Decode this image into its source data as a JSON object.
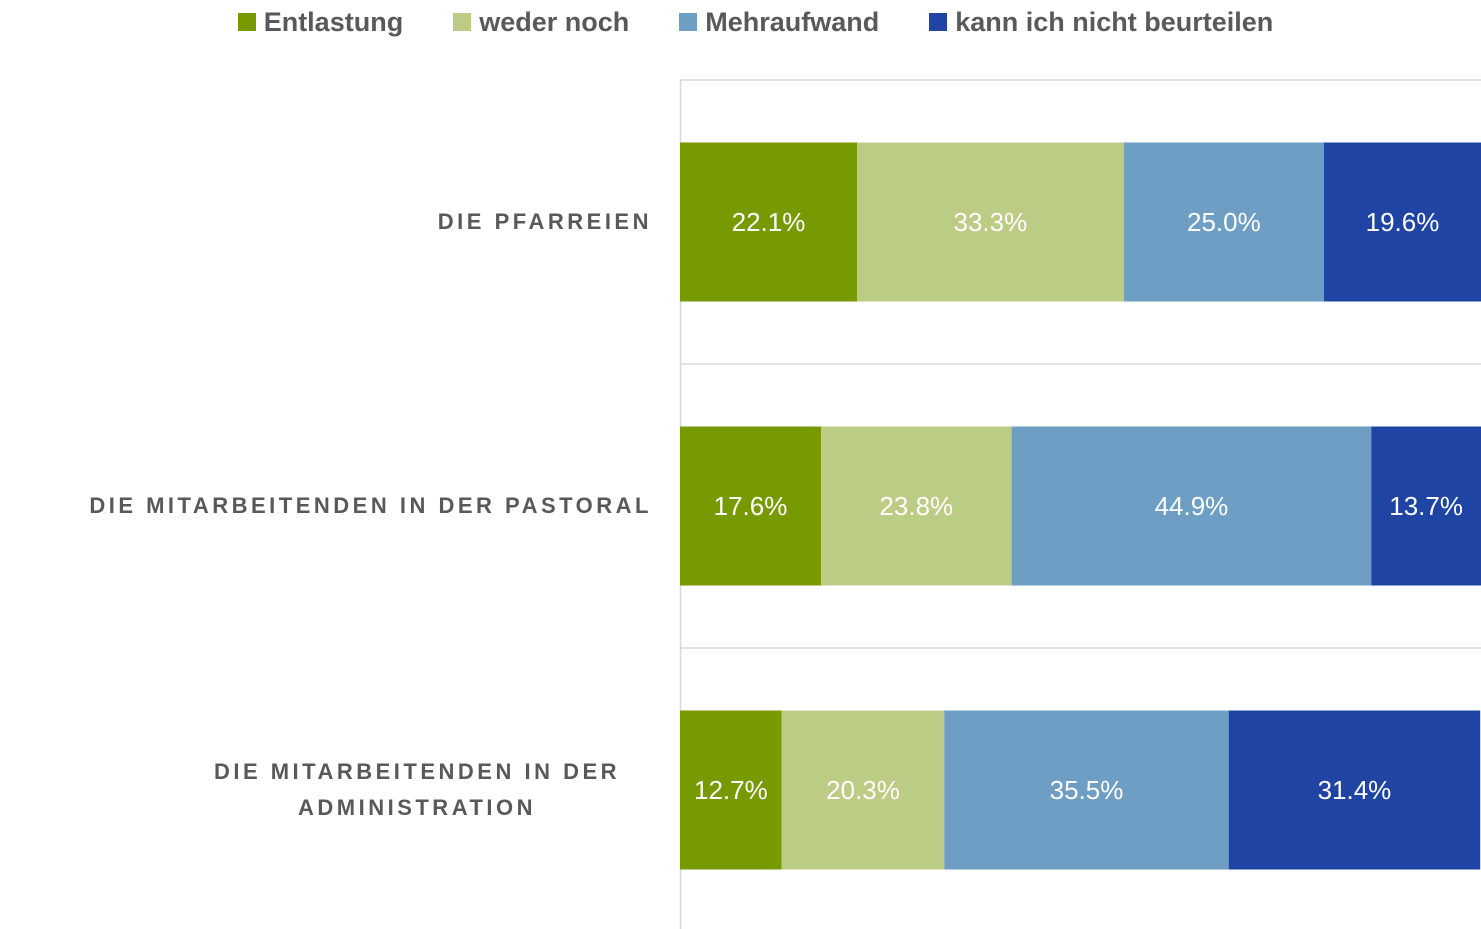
{
  "chart_data": {
    "type": "stacked-barh",
    "categories": [
      "DIE PFARREIEN",
      "DIE MITARBEITENDEN IN DER PASTORAL",
      "DIE MITARBEITENDEN IN DER ADMINISTRATION"
    ],
    "series": [
      {
        "name": "Entlastung",
        "color": "#779a01",
        "values": [
          22.1,
          17.6,
          12.7
        ],
        "value_labels": [
          "22.1%",
          "17.6%",
          "12.7%"
        ]
      },
      {
        "name": "weder noch",
        "color": "#bccc85",
        "values": [
          33.3,
          23.8,
          20.3
        ],
        "value_labels": [
          "33.3%",
          "23.8%",
          "20.3%"
        ]
      },
      {
        "name": "Mehraufwand",
        "color": "#6e9ec3",
        "values": [
          25.0,
          44.9,
          35.5
        ],
        "value_labels": [
          "25.0%",
          "44.9%",
          "35.5%"
        ]
      },
      {
        "name": "kann ich nicht beurteilen",
        "color": "#1f44a3",
        "values": [
          19.6,
          13.7,
          31.4
        ],
        "value_labels": [
          "19.6%",
          "13.7%",
          "31.4%"
        ]
      }
    ],
    "xlim": [
      0,
      100
    ],
    "legend": "top"
  }
}
